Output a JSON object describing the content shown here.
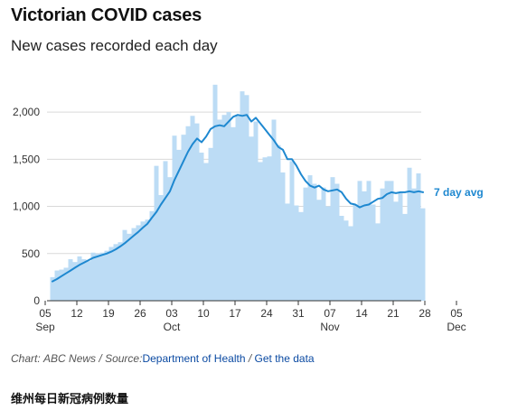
{
  "header": {
    "title": "Victorian COVID cases",
    "subtitle": "New cases recorded each day"
  },
  "credit": {
    "chart_label": "Chart:",
    "chart_source": "ABC News",
    "separator": "/",
    "source_label": "Source:",
    "source_link": "Department of Health",
    "separator2": "/",
    "data_link": "Get the data"
  },
  "caption": "维州每日新冠病例数量",
  "colors": {
    "bar": "#bcdcf5",
    "line": "#1e88d0",
    "grid": "#d9d9d9"
  },
  "chart_data": {
    "type": "bar",
    "title": "Victorian COVID cases",
    "subtitle": "New cases recorded each day",
    "start_date": "2021-09-05",
    "x_tick_labels": [
      {
        "day": "05",
        "month": "Sep",
        "date": "2021-09-05"
      },
      {
        "day": "12",
        "month": "",
        "date": "2021-09-12"
      },
      {
        "day": "19",
        "month": "",
        "date": "2021-09-19"
      },
      {
        "day": "26",
        "month": "",
        "date": "2021-09-26"
      },
      {
        "day": "03",
        "month": "Oct",
        "date": "2021-10-03"
      },
      {
        "day": "10",
        "month": "",
        "date": "2021-10-10"
      },
      {
        "day": "17",
        "month": "",
        "date": "2021-10-17"
      },
      {
        "day": "24",
        "month": "",
        "date": "2021-10-24"
      },
      {
        "day": "31",
        "month": "",
        "date": "2021-10-31"
      },
      {
        "day": "07",
        "month": "Nov",
        "date": "2021-11-07"
      },
      {
        "day": "14",
        "month": "",
        "date": "2021-11-14"
      },
      {
        "day": "21",
        "month": "",
        "date": "2021-11-21"
      },
      {
        "day": "28",
        "month": "",
        "date": "2021-11-28"
      },
      {
        "day": "05",
        "month": "Dec",
        "date": "2021-12-05"
      }
    ],
    "y_ticks": [
      0,
      500,
      1000,
      1500,
      2000
    ],
    "y_tick_labels": [
      "0",
      "500",
      "1,000",
      "1,500",
      "2,000"
    ],
    "ylim": [
      0,
      2250
    ],
    "grid": true,
    "series": [
      {
        "type": "bar",
        "values": [
          250,
          320,
          330,
          350,
          440,
          410,
          470,
          440,
          420,
          510,
          500,
          510,
          530,
          570,
          600,
          620,
          750,
          710,
          770,
          800,
          840,
          860,
          950,
          1430,
          1120,
          1480,
          1310,
          1750,
          1600,
          1760,
          1850,
          1960,
          1880,
          1570,
          1460,
          1620,
          2290,
          1920,
          1970,
          2000,
          1840,
          1970,
          2220,
          2180,
          1740,
          1900,
          1470,
          1520,
          1530,
          1920,
          1650,
          1360,
          1030,
          1480,
          1010,
          940,
          1200,
          1330,
          1240,
          1070,
          1200,
          1000,
          1310,
          1240,
          900,
          850,
          790,
          1020,
          1270,
          1160,
          1270,
          1020,
          820,
          1190,
          1270,
          1270,
          1050,
          1140,
          920,
          1410,
          1190,
          1350,
          980
        ]
      },
      {
        "type": "line",
        "name": "7 day avg",
        "values": [
          205,
          230,
          260,
          290,
          320,
          350,
          380,
          405,
          430,
          455,
          470,
          485,
          500,
          520,
          545,
          575,
          610,
          650,
          690,
          730,
          775,
          815,
          880,
          940,
          1020,
          1090,
          1160,
          1280,
          1380,
          1480,
          1580,
          1660,
          1720,
          1680,
          1740,
          1820,
          1850,
          1860,
          1850,
          1900,
          1950,
          1970,
          1960,
          1970,
          1900,
          1940,
          1880,
          1820,
          1760,
          1700,
          1630,
          1600,
          1500,
          1500,
          1430,
          1340,
          1270,
          1220,
          1200,
          1220,
          1180,
          1160,
          1170,
          1180,
          1150,
          1080,
          1030,
          1020,
          990,
          1010,
          1020,
          1050,
          1080,
          1090,
          1130,
          1150,
          1140,
          1150,
          1150,
          1160,
          1150,
          1160,
          1150
        ]
      }
    ]
  }
}
